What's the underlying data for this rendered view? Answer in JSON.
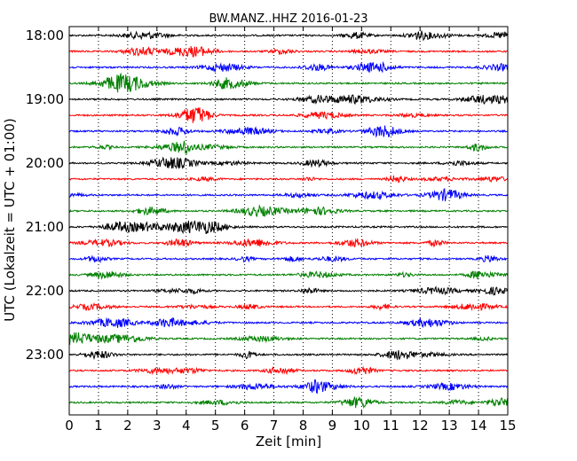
{
  "chart_data": {
    "type": "line",
    "title": "BW.MANZ..HHZ 2016-01-23",
    "xlabel": "Zeit  [min]",
    "ylabel": "UTC (Lokalzeit = UTC + 01:00)",
    "xlim": [
      0,
      15
    ],
    "x_ticks": [
      0,
      1,
      2,
      3,
      4,
      5,
      6,
      7,
      8,
      9,
      10,
      11,
      12,
      13,
      14,
      15
    ],
    "x_tick_labels": [
      "0",
      "1",
      "2",
      "3",
      "4",
      "5",
      "6",
      "7",
      "8",
      "9",
      "10",
      "11",
      "12",
      "13",
      "14",
      "15"
    ],
    "y_tick_labels": [
      "18:00",
      "19:00",
      "20:00",
      "21:00",
      "22:00",
      "23:00"
    ],
    "trace_minutes_per_row": 15,
    "grid": "vertical dotted lines at each minute",
    "trace_colors": [
      "#000000",
      "#ff0000",
      "#0000ff",
      "#008000"
    ],
    "series": [
      {
        "row": 0,
        "start": "18:00",
        "color": "#000000"
      },
      {
        "row": 1,
        "start": "18:15",
        "color": "#ff0000"
      },
      {
        "row": 2,
        "start": "18:30",
        "color": "#0000ff"
      },
      {
        "row": 3,
        "start": "18:45",
        "color": "#008000"
      },
      {
        "row": 4,
        "start": "19:00",
        "color": "#000000"
      },
      {
        "row": 5,
        "start": "19:15",
        "color": "#ff0000"
      },
      {
        "row": 6,
        "start": "19:30",
        "color": "#0000ff"
      },
      {
        "row": 7,
        "start": "19:45",
        "color": "#008000"
      },
      {
        "row": 8,
        "start": "20:00",
        "color": "#000000"
      },
      {
        "row": 9,
        "start": "20:15",
        "color": "#ff0000"
      },
      {
        "row": 10,
        "start": "20:30",
        "color": "#0000ff"
      },
      {
        "row": 11,
        "start": "20:45",
        "color": "#008000"
      },
      {
        "row": 12,
        "start": "21:00",
        "color": "#000000"
      },
      {
        "row": 13,
        "start": "21:15",
        "color": "#ff0000"
      },
      {
        "row": 14,
        "start": "21:30",
        "color": "#0000ff"
      },
      {
        "row": 15,
        "start": "21:45",
        "color": "#008000"
      },
      {
        "row": 16,
        "start": "22:00",
        "color": "#000000"
      },
      {
        "row": 17,
        "start": "22:15",
        "color": "#ff0000"
      },
      {
        "row": 18,
        "start": "22:30",
        "color": "#0000ff"
      },
      {
        "row": 19,
        "start": "22:45",
        "color": "#008000"
      },
      {
        "row": 20,
        "start": "23:00",
        "color": "#000000"
      },
      {
        "row": 21,
        "start": "23:15",
        "color": "#ff0000"
      },
      {
        "row": 22,
        "start": "23:30",
        "color": "#0000ff"
      },
      {
        "row": 23,
        "start": "23:45",
        "color": "#008000"
      }
    ]
  }
}
